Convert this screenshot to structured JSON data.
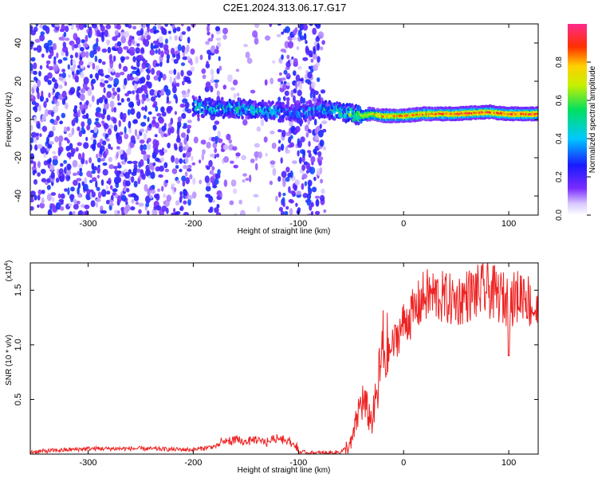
{
  "title": "C2E1.2024.313.06.17.G17",
  "colors": {
    "snr_line": "#ee2222",
    "axis": "#000000",
    "spectrogram_background": "#ffffff"
  },
  "chart_data": [
    {
      "type": "heatmap",
      "xlabel": "Height of straight line (km)",
      "ylabel": "Frequency (Hz)",
      "xlim": [
        -355,
        128
      ],
      "ylim": [
        -50,
        50
      ],
      "x_ticks": [
        -300,
        -200,
        -100,
        0,
        100
      ],
      "x_tick_labels": [
        "-300",
        "-200",
        "-100",
        "0",
        "100"
      ],
      "y_ticks": [
        -40,
        -20,
        0,
        20,
        40
      ],
      "y_tick_labels": [
        "-40",
        "-20",
        "0",
        "20",
        "40"
      ],
      "colormap": "rainbow (white→violet→blue→cyan→green→yellow→red→magenta)",
      "colorbar": {
        "label": "Normalized spectral amplitude",
        "range": [
          0,
          1
        ],
        "ticks": [
          0.0,
          0.2,
          0.4,
          0.6,
          0.8
        ],
        "tick_labels": [
          "0.0",
          "0.2",
          "0.4",
          "0.6",
          "0.8"
        ]
      },
      "ridge": {
        "description": "dominant frequency ridge (Hz) vs height (km)",
        "x": [
          -200,
          -180,
          -160,
          -140,
          -120,
          -100,
          -80,
          -60,
          -40,
          -30,
          -20,
          0,
          20,
          50,
          80,
          100,
          128
        ],
        "frequency": [
          7,
          6,
          6,
          5,
          4,
          3,
          6,
          4,
          2,
          3,
          2,
          2,
          3,
          3,
          4,
          3,
          3
        ],
        "peak_amplitude": [
          0.45,
          0.45,
          0.5,
          0.5,
          0.4,
          0.35,
          0.45,
          0.5,
          0.65,
          0.75,
          0.8,
          0.85,
          0.85,
          0.9,
          0.9,
          0.9,
          0.9
        ]
      },
      "noise_region": {
        "description": "broadband low-amplitude noise across all frequencies",
        "x_range": [
          -355,
          -75
        ],
        "amplitude": [
          0.05,
          0.3
        ]
      }
    },
    {
      "type": "line",
      "xlabel": "Height of straight line (km)",
      "ylabel": "SNR (10 * v/v)",
      "y_scale_label": "(x10",
      "y_scale_exponent": "4",
      "y_scale_close": ")",
      "xlim": [
        -355,
        128
      ],
      "ylim": [
        0,
        1.75
      ],
      "x_ticks": [
        -300,
        -200,
        -100,
        0,
        100
      ],
      "x_tick_labels": [
        "-300",
        "-200",
        "-100",
        "0",
        "100"
      ],
      "y_ticks": [
        0.5,
        1.0,
        1.5
      ],
      "y_tick_labels": [
        "0.5",
        "1.0",
        "1.5"
      ],
      "series": [
        {
          "x": [
            -355,
            -300,
            -250,
            -200,
            -180,
            -160,
            -150,
            -140,
            -130,
            -120,
            -110,
            -100,
            -90,
            -80,
            -70,
            -60,
            -50,
            -45,
            -40,
            -35,
            -30,
            -25,
            -20,
            -15,
            -10,
            -5,
            0,
            10,
            20,
            30,
            40,
            50,
            60,
            70,
            80,
            90,
            100,
            110,
            115,
            120,
            125,
            128
          ],
          "y": [
            0.02,
            0.05,
            0.05,
            0.04,
            0.07,
            0.1,
            0.08,
            0.1,
            0.08,
            0.12,
            0.1,
            0.02,
            0.01,
            0.01,
            0.01,
            0.02,
            0.08,
            0.3,
            0.5,
            0.4,
            0.3,
            0.55,
            0.95,
            0.9,
            1.0,
            1.1,
            1.2,
            1.3,
            1.45,
            1.45,
            1.42,
            1.4,
            1.45,
            1.48,
            1.5,
            1.45,
            1.4,
            1.45,
            1.5,
            1.38,
            1.32,
            1.28
          ]
        }
      ]
    }
  ]
}
